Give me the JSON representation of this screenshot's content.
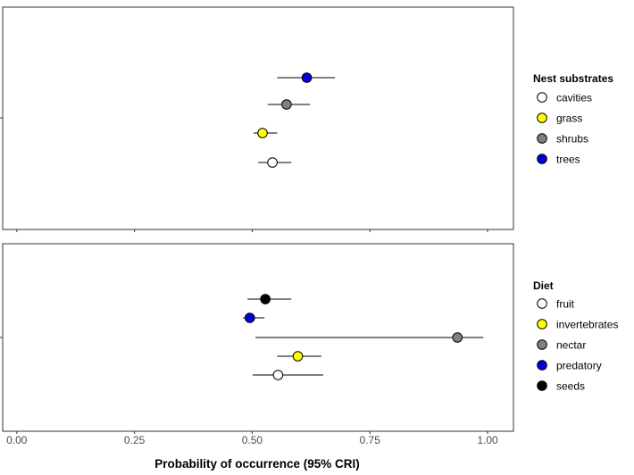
{
  "chart_data": {
    "type": "scatter",
    "xlabel": "Probability of occurrence (95% CRI)",
    "xlim": [
      -0.03,
      1.055
    ],
    "x_ticks": [
      "0.00",
      "0.25",
      "0.50",
      "0.75",
      "1.00"
    ],
    "x_tick_values": [
      0,
      0.25,
      0.5,
      0.75,
      1.0
    ],
    "grid": false,
    "legend_position": "right",
    "panels": [
      {
        "legend_title": "Nest substrates",
        "series": [
          {
            "name": "cavities",
            "color": "#ffffff",
            "estimate": 0.543,
            "lower": 0.513,
            "upper": 0.583
          },
          {
            "name": "grass",
            "color": "#ffff00",
            "estimate": 0.522,
            "lower": 0.503,
            "upper": 0.553
          },
          {
            "name": "shrubs",
            "color": "#808080",
            "estimate": 0.573,
            "lower": 0.533,
            "upper": 0.623
          },
          {
            "name": "trees",
            "color": "#0000dd",
            "estimate": 0.616,
            "lower": 0.553,
            "upper": 0.676
          }
        ]
      },
      {
        "legend_title": "Diet",
        "series": [
          {
            "name": "fruit",
            "color": "#ffffff",
            "estimate": 0.555,
            "lower": 0.501,
            "upper": 0.651
          },
          {
            "name": "invertebrates",
            "color": "#ffff00",
            "estimate": 0.597,
            "lower": 0.553,
            "upper": 0.647
          },
          {
            "name": "nectar",
            "color": "#808080",
            "estimate": 0.936,
            "lower": 0.507,
            "upper": 0.991
          },
          {
            "name": "predatory",
            "color": "#0000dd",
            "estimate": 0.495,
            "lower": 0.48,
            "upper": 0.526
          },
          {
            "name": "seeds",
            "color": "#000000",
            "estimate": 0.528,
            "lower": 0.49,
            "upper": 0.583
          }
        ]
      }
    ]
  }
}
